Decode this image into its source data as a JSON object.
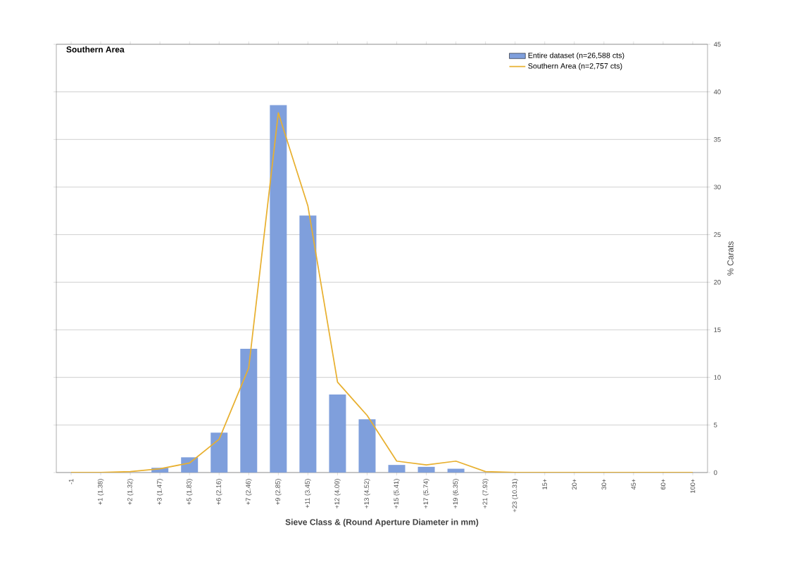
{
  "chart_data": {
    "type": "bar",
    "title": "Southern Area",
    "xlabel": "Sieve Class & (Round Aperture Diameter in mm)",
    "ylabel": "% Carats",
    "categories": [
      "-1",
      "+1 (1.38)",
      "+2 (1.32)",
      "+3 (1.47)",
      "+5 (1.83)",
      "+6 (2.16)",
      "+7 (2.46)",
      "+9 (2.85)",
      "+11 (3.45)",
      "+12 (4.09)",
      "+13 (4.52)",
      "+15 (5.41)",
      "+17 (5.74)",
      "+19 (6.35)",
      "+21 (7.93)",
      "+23 (10.31)",
      "15+",
      "20+",
      "30+",
      "45+",
      "60+",
      "100+"
    ],
    "series": [
      {
        "name": "Entire dataset (n=26,588 cts)",
        "color": "#7f9fdc",
        "values": [
          0,
          0,
          0,
          0.5,
          1.6,
          4.2,
          13,
          38.6,
          27,
          8.2,
          5.6,
          0.8,
          0.6,
          0.4,
          0,
          0,
          0,
          0,
          0,
          0,
          0,
          0
        ]
      },
      {
        "name": "Southern Area (n=2,757 cts)",
        "type": "line",
        "color": "#e8b030",
        "values": [
          0,
          0,
          0.1,
          0.4,
          1.0,
          3.5,
          11,
          37.8,
          28,
          9.5,
          6,
          1.2,
          0.8,
          1.2,
          0.1,
          0,
          0,
          0,
          0,
          0,
          0,
          0
        ]
      }
    ],
    "ylim": [
      0,
      45
    ],
    "yticks": [
      0,
      5,
      10,
      15,
      20,
      25,
      30,
      35,
      40,
      45
    ],
    "grid": "y",
    "legend": "top right",
    "marker": "none",
    "line_style": "solid"
  }
}
